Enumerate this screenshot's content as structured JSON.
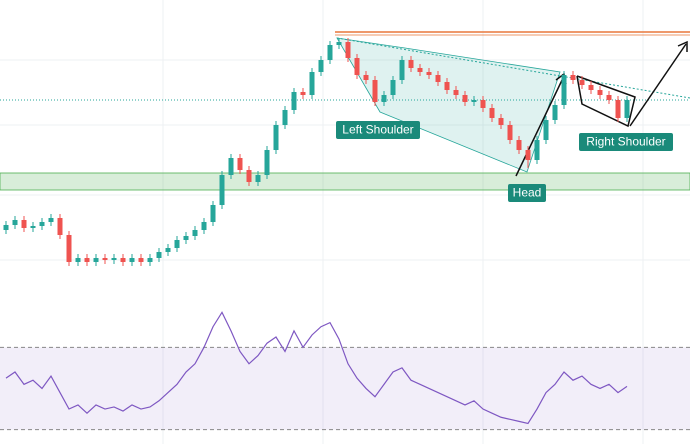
{
  "chart_data": [
    {
      "type": "candlestick",
      "up_color": "#26a69a",
      "down_color": "#ef5350",
      "ylim": [
        0,
        300
      ],
      "open": [
        70,
        75,
        80,
        72,
        74,
        78,
        82,
        65,
        38,
        42,
        38,
        42,
        40,
        42,
        38,
        42,
        38,
        42,
        48,
        52,
        60,
        64,
        70,
        78,
        95,
        125,
        142,
        130,
        118,
        125,
        150,
        175,
        190,
        208,
        205,
        228,
        240,
        255,
        258,
        242,
        225,
        220,
        198,
        205,
        220,
        240,
        232,
        228,
        225,
        218,
        210,
        205,
        198,
        200,
        192,
        182,
        175,
        160,
        150,
        140,
        160,
        180,
        195,
        225,
        220,
        215,
        210,
        205,
        200,
        182
      ],
      "close": [
        75,
        80,
        72,
        74,
        78,
        82,
        65,
        38,
        42,
        38,
        42,
        40,
        42,
        38,
        42,
        38,
        42,
        48,
        52,
        60,
        64,
        70,
        78,
        95,
        125,
        142,
        130,
        118,
        125,
        150,
        175,
        190,
        208,
        205,
        228,
        240,
        255,
        258,
        242,
        225,
        220,
        198,
        205,
        220,
        240,
        232,
        228,
        225,
        218,
        210,
        205,
        198,
        200,
        192,
        182,
        175,
        160,
        150,
        140,
        160,
        180,
        195,
        225,
        220,
        215,
        210,
        205,
        200,
        182,
        200
      ],
      "high": [
        79,
        84,
        84,
        78,
        82,
        86,
        86,
        69,
        46,
        46,
        46,
        46,
        46,
        46,
        46,
        46,
        46,
        52,
        56,
        64,
        68,
        74,
        82,
        99,
        129,
        146,
        146,
        134,
        129,
        154,
        179,
        194,
        212,
        212,
        232,
        244,
        259,
        262,
        262,
        246,
        229,
        224,
        209,
        224,
        244,
        244,
        236,
        232,
        229,
        222,
        214,
        209,
        204,
        204,
        196,
        186,
        179,
        164,
        154,
        164,
        184,
        199,
        229,
        229,
        224,
        219,
        214,
        209,
        204,
        204
      ],
      "low": [
        66,
        71,
        68,
        68,
        70,
        74,
        61,
        34,
        34,
        34,
        34,
        36,
        36,
        34,
        34,
        34,
        34,
        38,
        44,
        48,
        56,
        60,
        66,
        74,
        91,
        121,
        126,
        114,
        114,
        121,
        146,
        171,
        186,
        201,
        201,
        224,
        236,
        251,
        238,
        221,
        216,
        194,
        194,
        201,
        216,
        228,
        224,
        221,
        214,
        206,
        201,
        194,
        194,
        188,
        178,
        171,
        156,
        146,
        132,
        136,
        156,
        176,
        191,
        216,
        211,
        206,
        201,
        196,
        178,
        178
      ],
      "resistance": 268,
      "level_color": "#e8773a",
      "neckline": 200,
      "support_zone": [
        110,
        127
      ],
      "zone_color": "#4caf50",
      "annotations": [
        "Left Shoulder",
        "Head",
        "Right Shoulder"
      ],
      "label_color": "#1a8a7a"
    },
    {
      "type": "line",
      "color": "#7e57c2",
      "ylim": [
        23,
        93
      ],
      "bands": [
        70,
        30
      ],
      "values": [
        55,
        58,
        52,
        54,
        50,
        56,
        48,
        40,
        42,
        38,
        42,
        40,
        41,
        39,
        42,
        40,
        41,
        44,
        48,
        52,
        58,
        62,
        70,
        80,
        87,
        78,
        68,
        62,
        66,
        72,
        75,
        68,
        78,
        70,
        76,
        80,
        82,
        74,
        62,
        55,
        50,
        46,
        52,
        58,
        60,
        54,
        52,
        50,
        48,
        46,
        44,
        42,
        44,
        40,
        38,
        36,
        35,
        34,
        33,
        40,
        48,
        52,
        58,
        54,
        56,
        52,
        50,
        52,
        48,
        51
      ]
    }
  ]
}
